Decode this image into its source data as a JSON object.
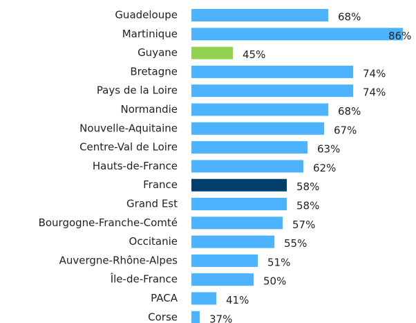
{
  "chart_data": {
    "type": "bar",
    "orientation": "horizontal",
    "categories": [
      "Guadeloupe",
      "Martinique",
      "Guyane",
      "Bretagne",
      "Pays de la Loire",
      "Normandie",
      "Nouvelle-Aquitaine",
      "Centre-Val de Loire",
      "Hauts-de-France",
      "France",
      "Grand Est",
      "Bourgogne-Franche-Comté",
      "Occitanie",
      "Auvergne-Rhône-Alpes",
      "Île-de-France",
      "PACA",
      "Corse"
    ],
    "values": [
      68,
      86,
      45,
      74,
      74,
      68,
      67,
      63,
      62,
      58,
      58,
      57,
      55,
      51,
      50,
      41,
      37
    ],
    "value_labels": [
      "68%",
      "86%",
      "45%",
      "74%",
      "74%",
      "68%",
      "67%",
      "63%",
      "62%",
      "58%",
      "58%",
      "57%",
      "55%",
      "51%",
      "50%",
      "41%",
      "37%"
    ],
    "colors": [
      "#4db3ff",
      "#4db3ff",
      "#92d050",
      "#4db3ff",
      "#4db3ff",
      "#4db3ff",
      "#4db3ff",
      "#4db3ff",
      "#4db3ff",
      "#003f6b",
      "#4db3ff",
      "#4db3ff",
      "#4db3ff",
      "#4db3ff",
      "#4db3ff",
      "#4db3ff",
      "#4db3ff"
    ],
    "xlim": [
      35,
      86
    ]
  }
}
